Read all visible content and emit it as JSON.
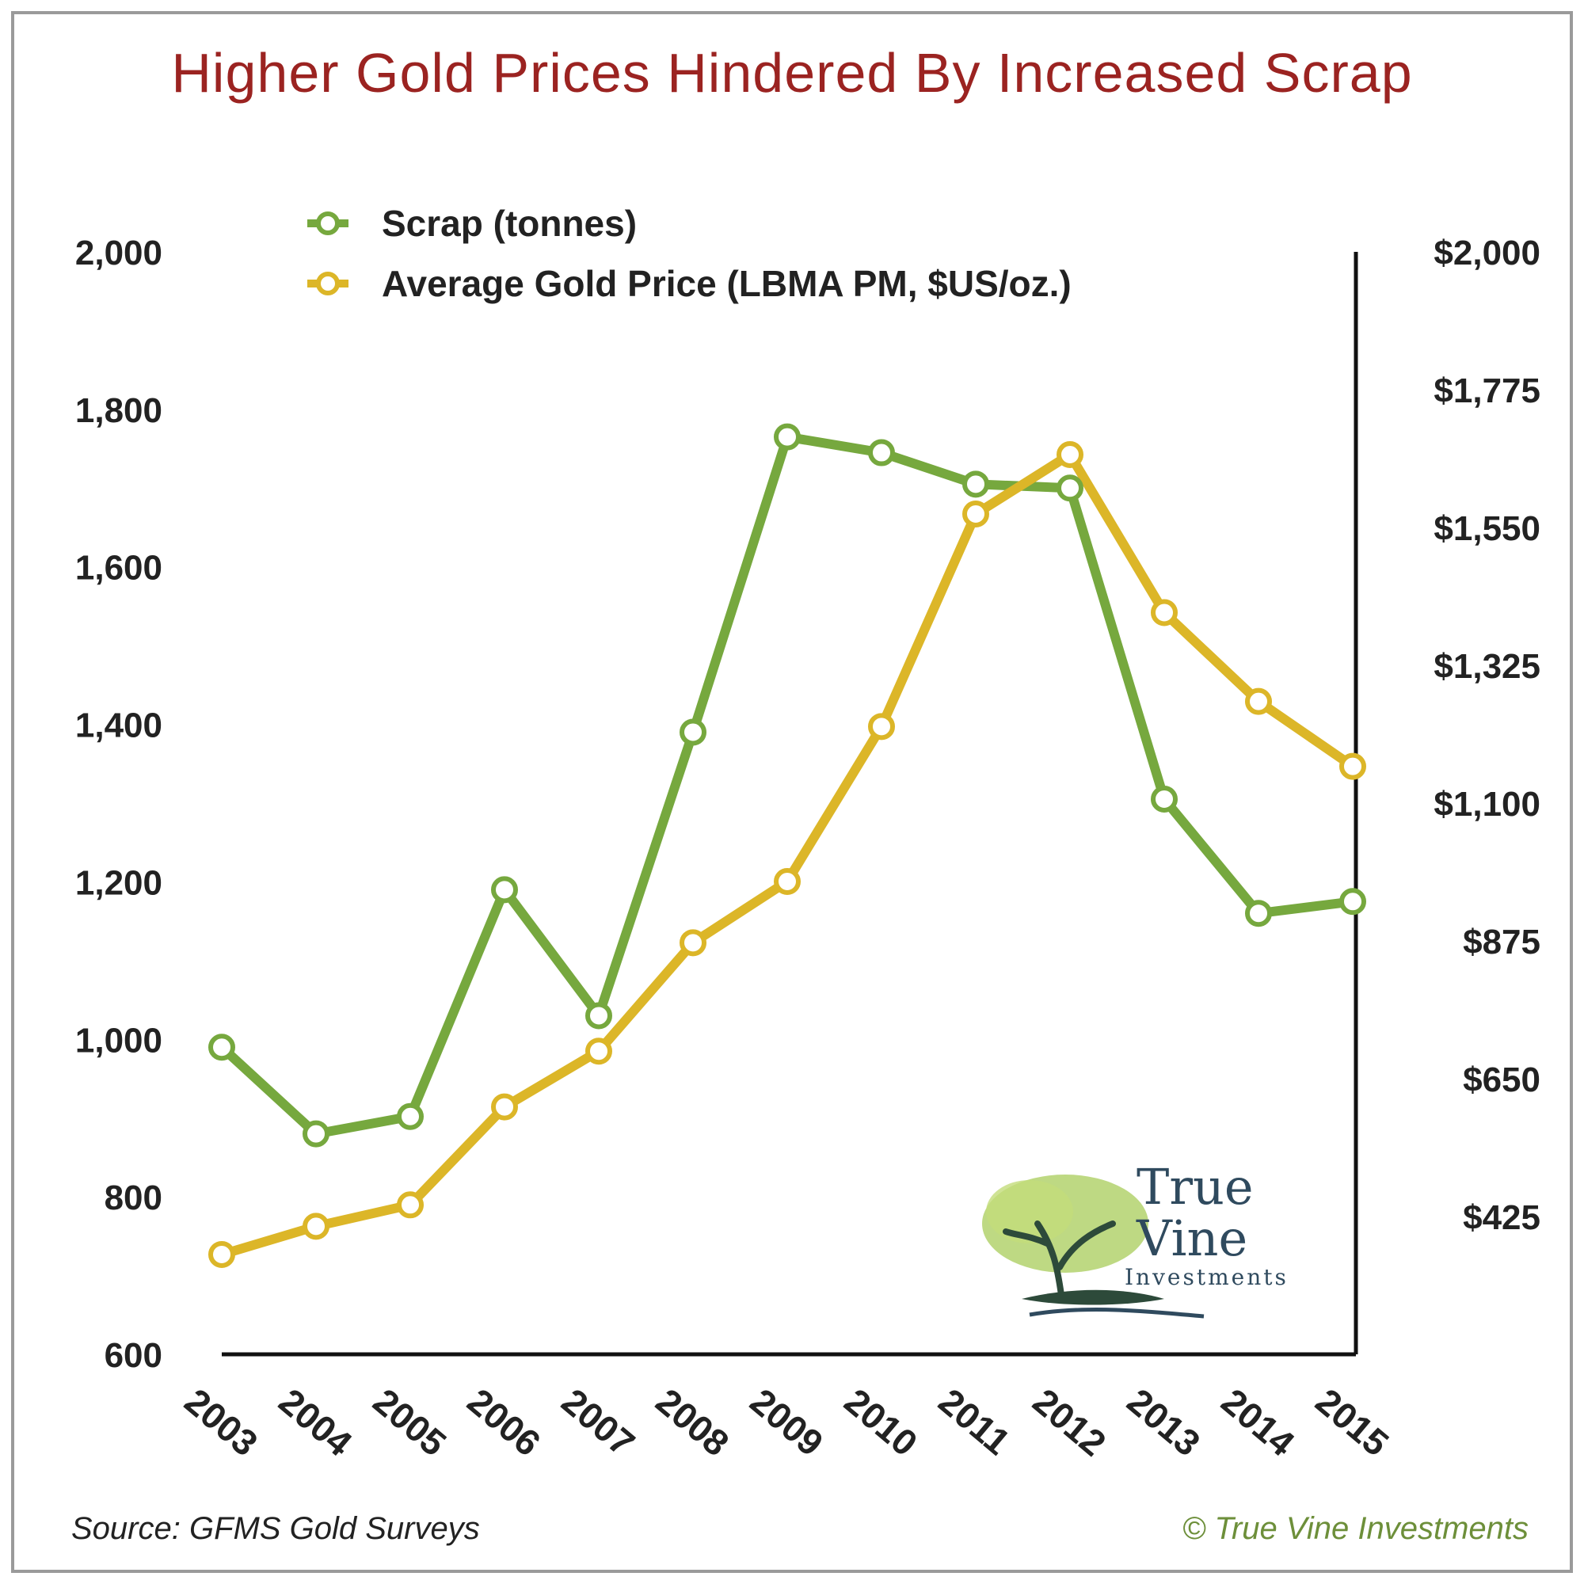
{
  "title": "Higher Gold Prices Hindered By Increased Scrap",
  "source": "Source: GFMS Gold Surveys",
  "copyright": "© True Vine Investments",
  "logo": {
    "line1": "True",
    "line2": "Vine",
    "line3": "Investments"
  },
  "colors": {
    "scrap": "#76a83e",
    "price": "#dcb628",
    "title": "#9b2321",
    "axis": "#111111"
  },
  "chart_data": {
    "type": "line",
    "title": "Higher Gold Prices Hindered By Increased Scrap",
    "x": [
      "2003",
      "2004",
      "2005",
      "2006",
      "2007",
      "2008",
      "2009",
      "2010",
      "2011",
      "2012",
      "2013",
      "2014",
      "2015"
    ],
    "left_axis": {
      "ylim": [
        600,
        2000
      ],
      "ticks": [
        "2,000",
        "1,800",
        "1,600",
        "1,400",
        "1,200",
        "1,000",
        "800",
        "600"
      ],
      "tick_values": [
        2000,
        1800,
        1600,
        1400,
        1200,
        1000,
        800,
        600
      ]
    },
    "right_axis": {
      "ylim": [
        200,
        2000
      ],
      "ticks": [
        "$2,000",
        "$1,775",
        "$1,550",
        "$1,325",
        "$1,100",
        "$875",
        "$650",
        "$425"
      ],
      "tick_values": [
        2000,
        1775,
        1550,
        1325,
        1100,
        875,
        650,
        425
      ]
    },
    "series": [
      {
        "name": "Scrap (tonnes)",
        "axis": "left",
        "color": "#76a83e",
        "values": [
          990,
          880,
          902,
          1190,
          1030,
          1390,
          1765,
          1745,
          1705,
          1700,
          1305,
          1160,
          1175
        ]
      },
      {
        "name": "Average Gold Price (LBMA PM, $US/oz.)",
        "axis": "right",
        "color": "#dcb628",
        "values": [
          363,
          409,
          444,
          604,
          695,
          872,
          972,
          1225,
          1572,
          1669,
          1411,
          1266,
          1160
        ]
      }
    ],
    "legend": "top-left",
    "grid": false
  }
}
